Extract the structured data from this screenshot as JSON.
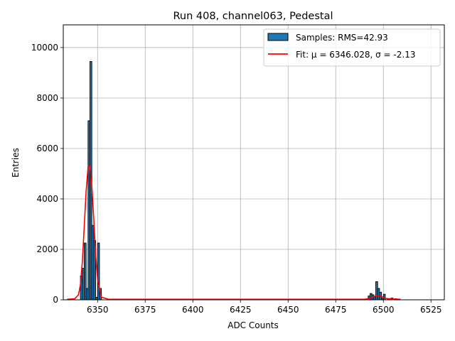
{
  "chart_data": {
    "type": "bar",
    "title": "Run 408, channel063, Pedestal",
    "xlabel": "ADC Counts",
    "ylabel": "Entries",
    "xlim": [
      5332,
      5532
    ],
    "ylim": [
      0,
      10900
    ],
    "x_ticks": [
      6350,
      6375,
      6400,
      6425,
      6450,
      6475,
      6500,
      6525
    ],
    "y_ticks": [
      0,
      2000,
      4000,
      6000,
      8000,
      10000
    ],
    "grid": true,
    "legend_position": "top-right",
    "legend": {
      "samples_label": "Samples: RMS=42.93",
      "fit_label": "Fit: μ = 6346.028, σ = -2.13"
    },
    "colors": {
      "bar": "#1f77b4",
      "fit": "#ff0000",
      "grid": "#b0b0b0"
    },
    "bin_width": 1,
    "histogram": [
      {
        "x": 6341,
        "y": 950
      },
      {
        "x": 6342,
        "y": 1250
      },
      {
        "x": 6343,
        "y": 2250
      },
      {
        "x": 6344,
        "y": 450
      },
      {
        "x": 6345,
        "y": 7100
      },
      {
        "x": 6346,
        "y": 9450
      },
      {
        "x": 6347,
        "y": 2950
      },
      {
        "x": 6348,
        "y": 2350
      },
      {
        "x": 6349,
        "y": 100
      },
      {
        "x": 6350,
        "y": 2250
      },
      {
        "x": 6351,
        "y": 450
      },
      {
        "x": 6492,
        "y": 150
      },
      {
        "x": 6493,
        "y": 250
      },
      {
        "x": 6494,
        "y": 200
      },
      {
        "x": 6495,
        "y": 120
      },
      {
        "x": 6496,
        "y": 720
      },
      {
        "x": 6497,
        "y": 450
      },
      {
        "x": 6498,
        "y": 300
      },
      {
        "x": 6499,
        "y": 60
      },
      {
        "x": 6500,
        "y": 220
      },
      {
        "x": 6502,
        "y": 50
      },
      {
        "x": 6504,
        "y": 70
      },
      {
        "x": 6506,
        "y": 40
      }
    ],
    "fit_curve": {
      "x": [
        6334,
        6338,
        6340,
        6341,
        6342,
        6343,
        6344,
        6345,
        6346,
        6347,
        6348,
        6349,
        6350,
        6352,
        6356,
        6400,
        6450,
        6490,
        6493,
        6495,
        6497,
        6499,
        6501,
        6503,
        6506,
        6509
      ],
      "y": [
        20,
        40,
        200,
        600,
        1500,
        2900,
        4300,
        5250,
        5300,
        4500,
        3200,
        1800,
        800,
        100,
        20,
        20,
        20,
        20,
        60,
        130,
        170,
        130,
        60,
        40,
        30,
        20
      ]
    }
  }
}
